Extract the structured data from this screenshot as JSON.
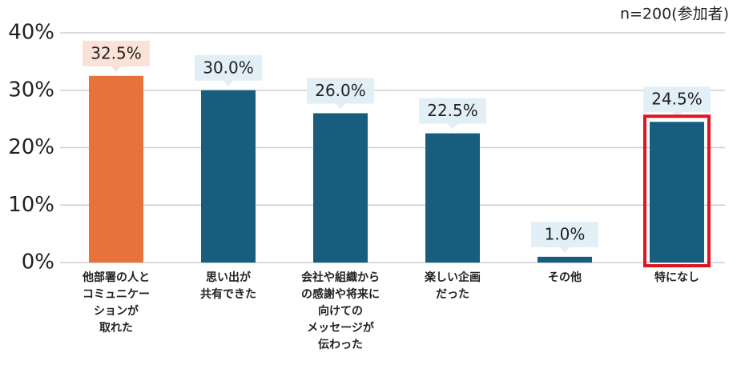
{
  "chart_data": {
    "type": "bar",
    "subtitle": "n=200(参加者)",
    "categories": [
      "他部署の人と\nコミュニケー\nションが\n取れた",
      "思い出が\n共有できた",
      "会社や組織から\nの感謝や将来に\n向けての\nメッセージが\n伝わった",
      "楽しい企画\nだった",
      "その他",
      "特になし"
    ],
    "values": [
      32.5,
      30.0,
      26.0,
      22.5,
      1.0,
      24.5
    ],
    "value_labels": [
      "32.5%",
      "30.0%",
      "26.0%",
      "22.5%",
      "1.0%",
      "24.5%"
    ],
    "colors": [
      "#e8733a",
      "#175e7e",
      "#175e7e",
      "#175e7e",
      "#175e7e",
      "#175e7e"
    ],
    "ylim": [
      0,
      40
    ],
    "yticks": [
      {
        "value": 0,
        "label": "0%"
      },
      {
        "value": 10,
        "label": "10%"
      },
      {
        "value": 20,
        "label": "20%"
      },
      {
        "value": 30,
        "label": "30%"
      },
      {
        "value": 40,
        "label": "40%"
      }
    ],
    "grid": true
  }
}
